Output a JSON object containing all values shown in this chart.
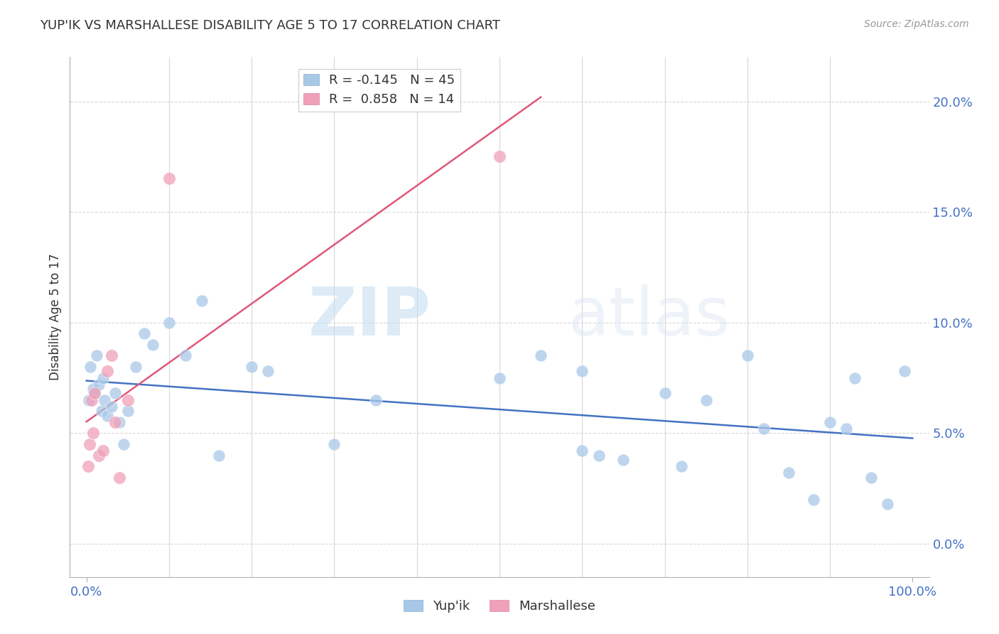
{
  "title": "YUP'IK VS MARSHALLESE DISABILITY AGE 5 TO 17 CORRELATION CHART",
  "source": "Source: ZipAtlas.com",
  "ylabel": "Disability Age 5 to 17",
  "xlim": [
    -2,
    102
  ],
  "ylim": [
    -1.5,
    22
  ],
  "x_ticks_labeled": [
    0,
    100
  ],
  "x_ticks_minor": [
    10,
    20,
    30,
    40,
    50,
    60,
    70,
    80,
    90
  ],
  "y_ticks": [
    0,
    5,
    10,
    15,
    20
  ],
  "watermark_zip": "ZIP",
  "watermark_atlas": "atlas",
  "legend_r1": "R = -0.145   N = 45",
  "legend_r2": "R =  0.858   N = 14",
  "series_labels": [
    "Yup'ik",
    "Marshallese"
  ],
  "yupik_color": "#a8c8e8",
  "marshallese_color": "#f0a0b8",
  "trend_yupik_color": "#4472c4",
  "trend_marshallese_color": "#e05878",
  "legend_yupik_color": "#a8c8e8",
  "legend_marshallese_color": "#f0a0b8",
  "yupik_x": [
    0.3,
    0.5,
    0.8,
    1.0,
    1.2,
    1.5,
    1.8,
    2.0,
    2.2,
    2.5,
    3.0,
    3.5,
    4.0,
    4.5,
    5.0,
    6.0,
    7.0,
    8.0,
    10.0,
    12.0,
    14.0,
    16.0,
    20.0,
    22.0,
    30.0,
    35.0,
    50.0,
    55.0,
    60.0,
    60.0,
    62.0,
    65.0,
    70.0,
    72.0,
    75.0,
    80.0,
    82.0,
    85.0,
    88.0,
    90.0,
    92.0,
    93.0,
    95.0,
    97.0,
    99.0
  ],
  "yupik_y": [
    6.5,
    8.0,
    7.0,
    6.8,
    8.5,
    7.2,
    6.0,
    7.5,
    6.5,
    5.8,
    6.2,
    6.8,
    5.5,
    4.5,
    6.0,
    8.0,
    9.5,
    9.0,
    10.0,
    8.5,
    11.0,
    4.0,
    8.0,
    7.8,
    4.5,
    6.5,
    7.5,
    8.5,
    4.2,
    7.8,
    4.0,
    3.8,
    6.8,
    3.5,
    6.5,
    8.5,
    5.2,
    3.2,
    2.0,
    5.5,
    5.2,
    7.5,
    3.0,
    1.8,
    7.8
  ],
  "marshallese_x": [
    0.2,
    0.4,
    0.6,
    0.8,
    1.0,
    1.5,
    2.0,
    2.5,
    3.0,
    3.5,
    4.0,
    5.0,
    10.0,
    50.0
  ],
  "marshallese_y": [
    3.5,
    4.5,
    6.5,
    5.0,
    6.8,
    4.0,
    4.2,
    7.8,
    8.5,
    5.5,
    3.0,
    6.5,
    16.5,
    17.5
  ],
  "trend_marsh_x_start": 0,
  "trend_marsh_x_end": 55,
  "background_color": "#ffffff",
  "grid_color": "#d8d8d8",
  "tick_color": "#4472c4",
  "label_color": "#333333",
  "spine_color": "#b0b0b0"
}
